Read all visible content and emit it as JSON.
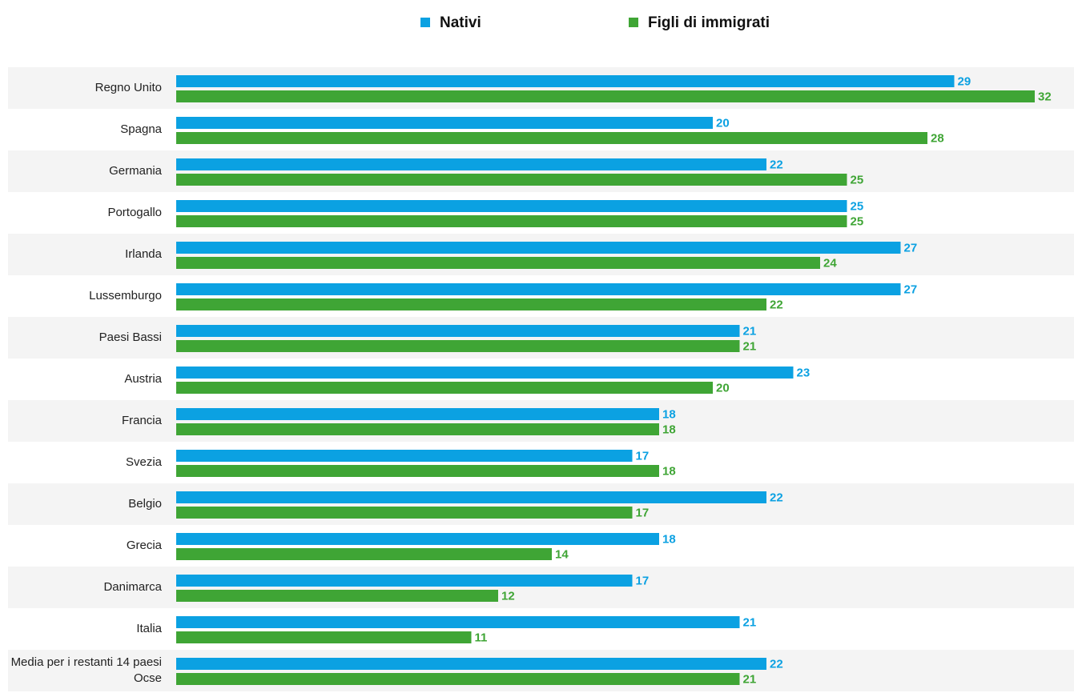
{
  "chart_data": {
    "type": "bar",
    "orientation": "horizontal",
    "categories": [
      "Regno Unito",
      "Spagna",
      "Germania",
      "Portogallo",
      "Irlanda",
      "Lussemburgo",
      "Paesi Bassi",
      "Austria",
      "Francia",
      "Svezia",
      "Belgio",
      "Grecia",
      "Danimarca",
      "Italia",
      "Media per i restanti 14 paesi Ocse"
    ],
    "series": [
      {
        "name": "Nativi",
        "color": "#0ba1e2",
        "values": [
          29,
          20,
          22,
          25,
          27,
          27,
          21,
          23,
          18,
          17,
          22,
          18,
          17,
          21,
          22
        ]
      },
      {
        "name": "Figli di immigrati",
        "color": "#3fa535",
        "values": [
          32,
          28,
          25,
          25,
          24,
          22,
          21,
          20,
          18,
          18,
          17,
          14,
          12,
          11,
          21
        ]
      }
    ],
    "legend": "top"
  }
}
